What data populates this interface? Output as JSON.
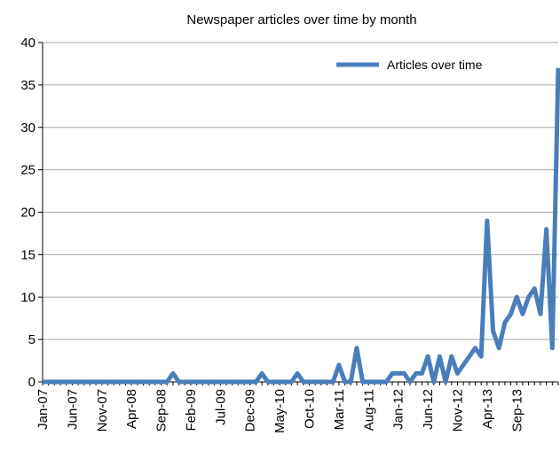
{
  "chart_data": {
    "type": "line",
    "title": "Newspaper articles over time by month",
    "xlabel": "",
    "ylabel": "",
    "ylim": [
      0,
      40
    ],
    "yticks": [
      0,
      5,
      10,
      15,
      20,
      25,
      30,
      35,
      40
    ],
    "grid": true,
    "legend_position": "top-right",
    "x_tick_labels": [
      "Jan-07",
      "Jun-07",
      "Nov-07",
      "Apr-08",
      "Sep-08",
      "Feb-09",
      "Jul-09",
      "Dec-09",
      "May-10",
      "Oct-10",
      "Mar-11",
      "Aug-11",
      "Jan-12",
      "Jun-12",
      "Nov-12",
      "Apr-13",
      "Sep-13"
    ],
    "start_month": "Jan-07",
    "series": [
      {
        "name": "Articles over time",
        "color": "#4a7ebb",
        "values": [
          0,
          0,
          0,
          0,
          0,
          0,
          0,
          0,
          0,
          0,
          0,
          0,
          0,
          0,
          0,
          0,
          0,
          0,
          0,
          0,
          0,
          0,
          1,
          0,
          0,
          0,
          0,
          0,
          0,
          0,
          0,
          0,
          0,
          0,
          0,
          0,
          0,
          1,
          0,
          0,
          0,
          0,
          0,
          1,
          0,
          0,
          0,
          0,
          0,
          0,
          2,
          0,
          0,
          4,
          0,
          0,
          0,
          0,
          0,
          1,
          1,
          1,
          0,
          1,
          1,
          3,
          0,
          3,
          0,
          3,
          1,
          2,
          3,
          4,
          3,
          19,
          6,
          4,
          7,
          8,
          10,
          8,
          10,
          11,
          8,
          18,
          4,
          37
        ]
      }
    ]
  }
}
